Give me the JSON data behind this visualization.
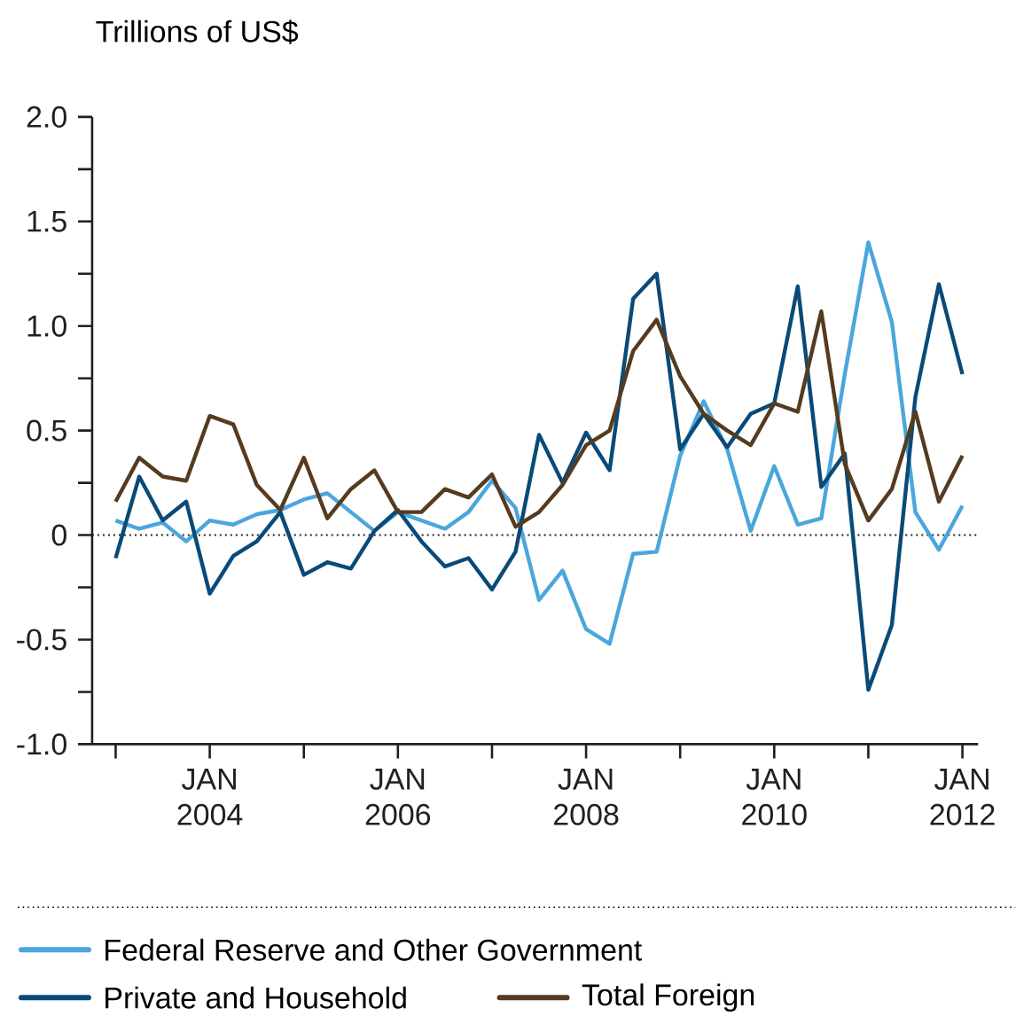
{
  "chart_data": {
    "type": "line",
    "ylabel": "Trillions of US$",
    "x": [
      "2003-01",
      "2003-04",
      "2003-07",
      "2003-10",
      "2004-01",
      "2004-04",
      "2004-07",
      "2004-10",
      "2005-01",
      "2005-04",
      "2005-07",
      "2005-10",
      "2006-01",
      "2006-04",
      "2006-07",
      "2006-10",
      "2007-01",
      "2007-04",
      "2007-07",
      "2007-10",
      "2008-01",
      "2008-04",
      "2008-07",
      "2008-10",
      "2009-01",
      "2009-04",
      "2009-07",
      "2009-10",
      "2010-01",
      "2010-04",
      "2010-07",
      "2010-10",
      "2011-01",
      "2011-04",
      "2011-07",
      "2011-10",
      "2012-01"
    ],
    "series": [
      {
        "name": "Federal Reserve and Other Government",
        "color": "#4aa6dc",
        "values": [
          0.07,
          0.03,
          0.06,
          -0.03,
          0.07,
          0.05,
          0.1,
          0.12,
          0.17,
          0.2,
          0.11,
          0.02,
          0.11,
          0.07,
          0.03,
          0.11,
          0.26,
          0.13,
          -0.31,
          -0.17,
          -0.45,
          -0.52,
          -0.09,
          -0.08,
          0.38,
          0.64,
          0.41,
          0.02,
          0.33,
          0.05,
          0.08,
          0.77,
          1.4,
          1.02,
          0.11,
          -0.07,
          0.14
        ]
      },
      {
        "name": "Private and Household",
        "color": "#0a4a78",
        "values": [
          -0.11,
          0.28,
          0.07,
          0.16,
          -0.28,
          -0.1,
          -0.03,
          0.11,
          -0.19,
          -0.13,
          -0.16,
          0.02,
          0.12,
          -0.03,
          -0.15,
          -0.11,
          -0.26,
          -0.08,
          0.48,
          0.25,
          0.49,
          0.31,
          1.13,
          1.25,
          0.41,
          0.58,
          0.42,
          0.58,
          0.63,
          1.19,
          0.23,
          0.39,
          -0.74,
          -0.43,
          0.66,
          1.2,
          0.77
        ]
      },
      {
        "name": "Total Foreign",
        "color": "#553b1f",
        "values": [
          0.16,
          0.37,
          0.28,
          0.26,
          0.57,
          0.53,
          0.24,
          0.12,
          0.37,
          0.08,
          0.22,
          0.31,
          0.11,
          0.11,
          0.22,
          0.18,
          0.29,
          0.04,
          0.11,
          0.24,
          0.43,
          0.5,
          0.88,
          1.03,
          0.76,
          0.58,
          0.5,
          0.43,
          0.63,
          0.59,
          1.07,
          0.34,
          0.07,
          0.22,
          0.59,
          0.16,
          0.38
        ]
      }
    ],
    "xlim": [
      "2002-10",
      "2012-03"
    ],
    "xticks": [
      {
        "value": "2003-01",
        "label": null
      },
      {
        "value": "2004-01",
        "label": "JAN 2004"
      },
      {
        "value": "2005-01",
        "label": null
      },
      {
        "value": "2006-01",
        "label": "JAN 2006"
      },
      {
        "value": "2007-01",
        "label": null
      },
      {
        "value": "2008-01",
        "label": "JAN 2008"
      },
      {
        "value": "2009-01",
        "label": null
      },
      {
        "value": "2010-01",
        "label": "JAN 2010"
      },
      {
        "value": "2011-01",
        "label": null
      },
      {
        "value": "2012-01",
        "label": "JAN 2012"
      }
    ],
    "ylim": [
      -1,
      2
    ],
    "yticks": [
      {
        "value": -1,
        "label": "-1.0"
      },
      {
        "value": -0.75,
        "label": null
      },
      {
        "value": -0.5,
        "label": "-0.5"
      },
      {
        "value": -0.25,
        "label": null
      },
      0,
      {
        "value": 0.25,
        "label": null
      },
      {
        "value": 0.5,
        "label": "0.5"
      },
      {
        "value": 0.75,
        "label": null
      },
      {
        "value": 1,
        "label": "1.0"
      },
      {
        "value": 1.25,
        "label": null
      },
      {
        "value": 1.5,
        "label": "1.5"
      },
      {
        "value": 1.75,
        "label": null
      },
      {
        "value": 2,
        "label": "2.0"
      }
    ],
    "ref_lines": [
      {
        "axis": "y",
        "value": 0,
        "line_style": "dotted",
        "color": "#231f20"
      }
    ],
    "legend": "bottom"
  }
}
